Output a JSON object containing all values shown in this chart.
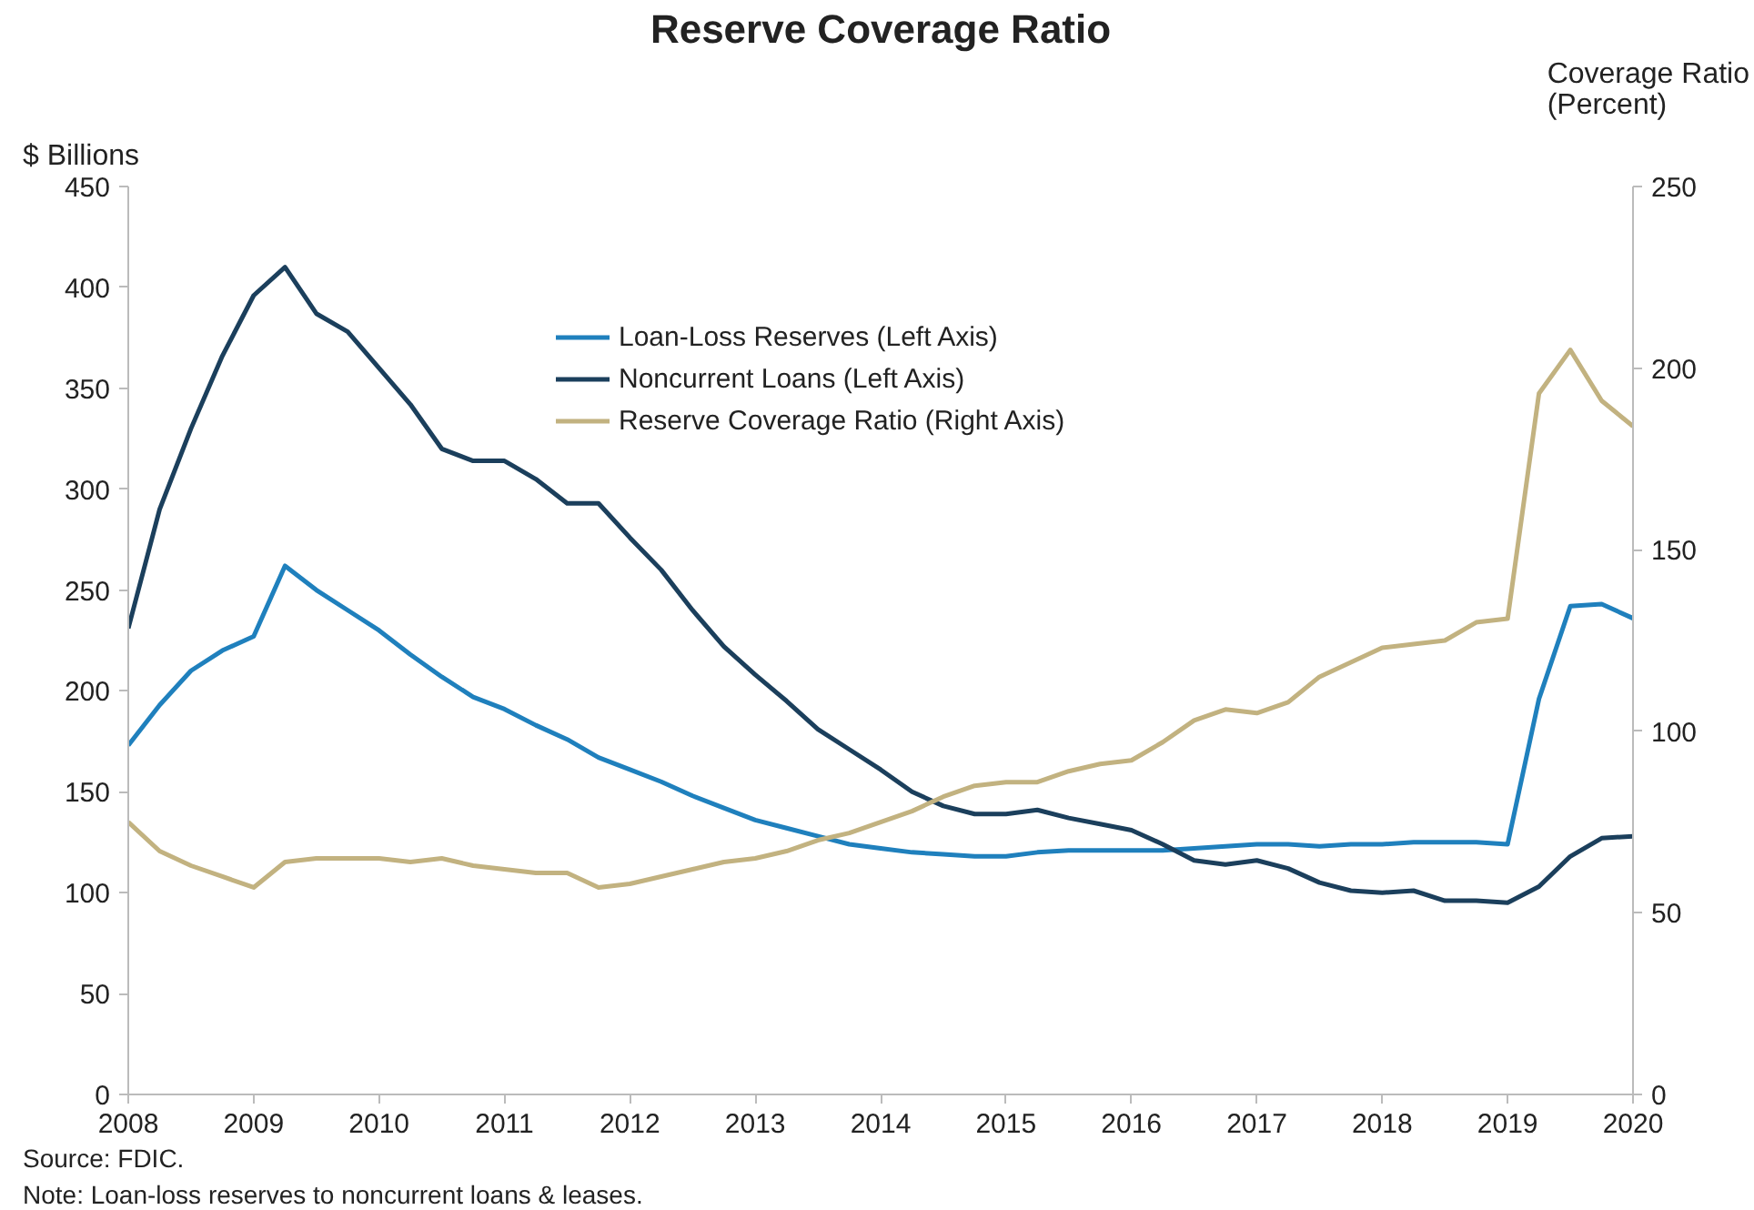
{
  "chart_data": {
    "type": "line",
    "title": "Reserve Coverage Ratio",
    "ylabel": "$ Billions",
    "y2label": "Coverage Ratio\n(Percent)",
    "x": [
      2008,
      2008.25,
      2008.5,
      2008.75,
      2009,
      2009.25,
      2009.5,
      2009.75,
      2010,
      2010.25,
      2010.5,
      2010.75,
      2011,
      2011.25,
      2011.5,
      2011.75,
      2012,
      2012.25,
      2012.5,
      2012.75,
      2013,
      2013.25,
      2013.5,
      2013.75,
      2014,
      2014.25,
      2014.5,
      2014.75,
      2015,
      2015.25,
      2015.5,
      2015.75,
      2016,
      2016.25,
      2016.5,
      2016.75,
      2017,
      2017.25,
      2017.5,
      2017.75,
      2018,
      2018.25,
      2018.5,
      2018.75,
      2019,
      2019.25,
      2019.5,
      2019.75,
      2020
    ],
    "series": [
      {
        "name": "Loan-Loss Reserves (Left Axis)",
        "color": "#1f80bd",
        "values": [
          173,
          193,
          210,
          220,
          227,
          262,
          250,
          240,
          230,
          218,
          207,
          197,
          191,
          183,
          176,
          167,
          161,
          155,
          148,
          142,
          136,
          132,
          128,
          124,
          122,
          120,
          119,
          118,
          118,
          120,
          121,
          121,
          121,
          121,
          122,
          123,
          124,
          124,
          123,
          124,
          124,
          125,
          125,
          125,
          124,
          196,
          242,
          243,
          236
        ]
      },
      {
        "name": "Noncurrent Loans (Left Axis)",
        "color": "#1b3f5c",
        "values": [
          231,
          290,
          330,
          366,
          396,
          410,
          387,
          378,
          360,
          342,
          320,
          314,
          314,
          305,
          293,
          293,
          276,
          260,
          240,
          222,
          208,
          195,
          181,
          171,
          161,
          150,
          143,
          139,
          139,
          141,
          137,
          134,
          131,
          124,
          116,
          114,
          116,
          112,
          105,
          101,
          100,
          101,
          96,
          96,
          95,
          103,
          118,
          127,
          128
        ]
      },
      {
        "name": "Reserve Coverage Ratio (Right Axis)",
        "color": "#c2b280",
        "axis": "y2",
        "values": [
          75,
          67,
          63,
          60,
          57,
          64,
          65,
          65,
          65,
          64,
          65,
          63,
          62,
          61,
          61,
          57,
          58,
          60,
          62,
          64,
          65,
          67,
          70,
          72,
          75,
          78,
          82,
          85,
          86,
          86,
          89,
          91,
          92,
          97,
          103,
          106,
          105,
          108,
          115,
          119,
          123,
          124,
          125,
          130,
          131,
          193,
          205,
          191,
          184
        ]
      }
    ],
    "xlim": [
      2008,
      2020
    ],
    "xticks": [
      2008,
      2009,
      2010,
      2011,
      2012,
      2013,
      2014,
      2015,
      2016,
      2017,
      2018,
      2019,
      2020
    ],
    "ylim": [
      0,
      450
    ],
    "yticks": [
      0,
      50,
      100,
      150,
      200,
      250,
      300,
      350,
      400,
      450
    ],
    "y2lim": [
      0,
      250
    ],
    "y2ticks": [
      0,
      50,
      100,
      150,
      200,
      250
    ],
    "grid": false,
    "legend": "top",
    "line_style": "solid",
    "annotations": [
      "Source: FDIC.",
      "Note: Loan-loss reserves to noncurrent loans & leases."
    ]
  }
}
